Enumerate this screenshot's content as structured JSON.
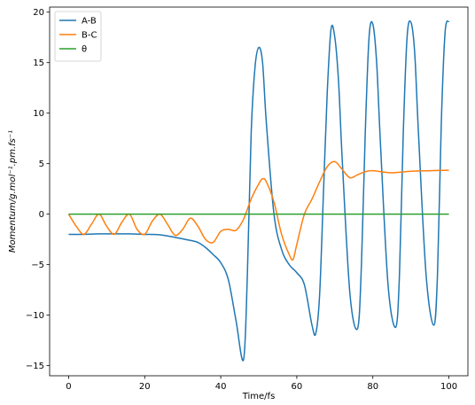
{
  "chart_data": {
    "type": "line",
    "title": "",
    "xlabel": "Time/fs",
    "ylabel": "Momentum/g.mol⁻¹.pm.fs⁻¹",
    "xlim": [
      -5,
      105
    ],
    "ylim": [
      -16,
      20.5
    ],
    "xticks": [
      0,
      20,
      40,
      60,
      80,
      100
    ],
    "yticks": [
      -15,
      -10,
      -5,
      0,
      5,
      10,
      15,
      20
    ],
    "grid": false,
    "legend_position": "top-left",
    "series": [
      {
        "name": "A-B",
        "color": "#1f77b4",
        "x": [
          0,
          4,
          8,
          12,
          16,
          20,
          24,
          28,
          32,
          34,
          36,
          38,
          40,
          42,
          44,
          46,
          47,
          48,
          49,
          50,
          51,
          52,
          54,
          56,
          58,
          60,
          62,
          64,
          65,
          66,
          67,
          68,
          69,
          70,
          71,
          72,
          74,
          76,
          77,
          78,
          79,
          80,
          81,
          82,
          84,
          86,
          87,
          88,
          89,
          90,
          91,
          92,
          94,
          96,
          97,
          98,
          99,
          100
        ],
        "y": [
          -2,
          -2,
          -1.95,
          -1.95,
          -1.95,
          -2,
          -2.05,
          -2.3,
          -2.6,
          -2.8,
          -3.3,
          -4,
          -4.8,
          -6.5,
          -10.5,
          -14.4,
          -6,
          8,
          14.5,
          16.5,
          15,
          9,
          0,
          -3.5,
          -5,
          -5.8,
          -7,
          -11,
          -11.8,
          -8,
          2,
          12,
          18.3,
          17.5,
          13,
          5,
          -8,
          -11.3,
          -5,
          8,
          17.5,
          18.8,
          15,
          7,
          -7,
          -11.2,
          -6,
          8,
          17.5,
          19,
          16,
          8,
          -6,
          -11,
          -6,
          9,
          18,
          19.1
        ]
      },
      {
        "name": "B-C",
        "color": "#ff7f0e",
        "x": [
          0,
          2,
          4,
          6,
          8,
          10,
          12,
          14,
          16,
          18,
          20,
          22,
          24,
          26,
          28,
          30,
          32,
          34,
          36,
          38,
          40,
          42,
          44,
          46,
          48,
          50,
          51,
          52,
          54,
          56,
          58,
          59,
          60,
          62,
          64,
          66,
          68,
          70,
          72,
          74,
          76,
          78,
          80,
          85,
          90,
          95,
          100
        ],
        "y": [
          0,
          -1.2,
          -2,
          -1,
          0,
          -1.2,
          -2,
          -0.8,
          0,
          -1.5,
          -2,
          -0.7,
          0,
          -1,
          -2.1,
          -1.5,
          -0.4,
          -1.2,
          -2.5,
          -2.8,
          -1.7,
          -1.5,
          -1.6,
          -0.5,
          1.5,
          3,
          3.5,
          3.2,
          1.2,
          -2,
          -4,
          -4.5,
          -3,
          0,
          1.5,
          3.2,
          4.7,
          5.2,
          4.4,
          3.6,
          3.9,
          4.2,
          4.3,
          4.1,
          4.25,
          4.3,
          4.35
        ]
      },
      {
        "name": "θ",
        "color": "#2ca02c",
        "x": [
          0,
          100
        ],
        "y": [
          0,
          0
        ]
      }
    ]
  }
}
